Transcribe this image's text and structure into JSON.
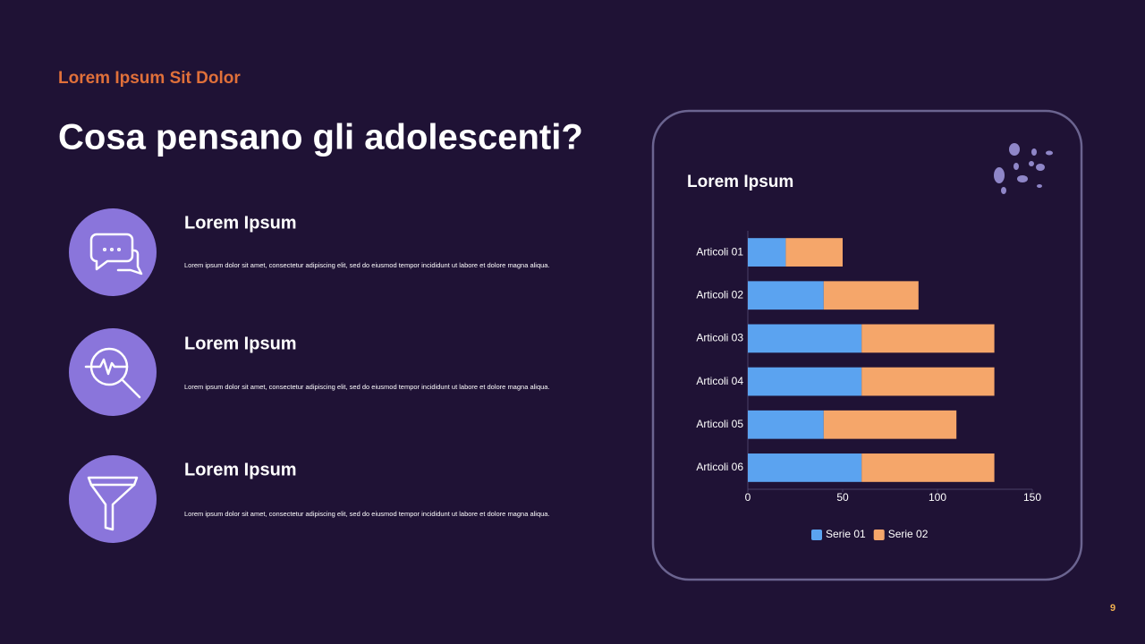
{
  "header": {
    "kicker": "Lorem Ipsum Sit Dolor",
    "title": "Cosa pensano gli adolescenti?"
  },
  "items": [
    {
      "title": "Lorem Ipsum",
      "text": "Lorem ipsum dolor sit amet, consectetur adipiscing elit, sed do eiusmod tempor incididunt ut labore et dolore magna aliqua."
    },
    {
      "title": "Lorem Ipsum",
      "text": "Lorem ipsum dolor sit amet, consectetur adipiscing elit, sed do eiusmod tempor incididunt ut labore et dolore magna aliqua."
    },
    {
      "title": "Lorem Ipsum",
      "text": "Lorem ipsum dolor sit amet, consectetur adipiscing elit, sed do eiusmod tempor incididunt ut labore et dolore magna aliqua."
    }
  ],
  "page_number": "9",
  "chart_data": {
    "type": "bar",
    "orientation": "horizontal",
    "stacked": true,
    "title": "Lorem Ipsum",
    "categories": [
      "Articoli 01",
      "Articoli 02",
      "Articoli 03",
      "Articoli 04",
      "Articoli 05",
      "Articoli 06"
    ],
    "series": [
      {
        "name": "Serie 01",
        "color": "#5ba3f0",
        "values": [
          20,
          40,
          60,
          60,
          40,
          60
        ]
      },
      {
        "name": "Serie 02",
        "color": "#f5a66a",
        "values": [
          30,
          50,
          70,
          70,
          70,
          70
        ]
      }
    ],
    "xlim": [
      0,
      150
    ],
    "xticks": [
      0,
      50,
      100,
      150
    ],
    "legend": "bottom"
  }
}
